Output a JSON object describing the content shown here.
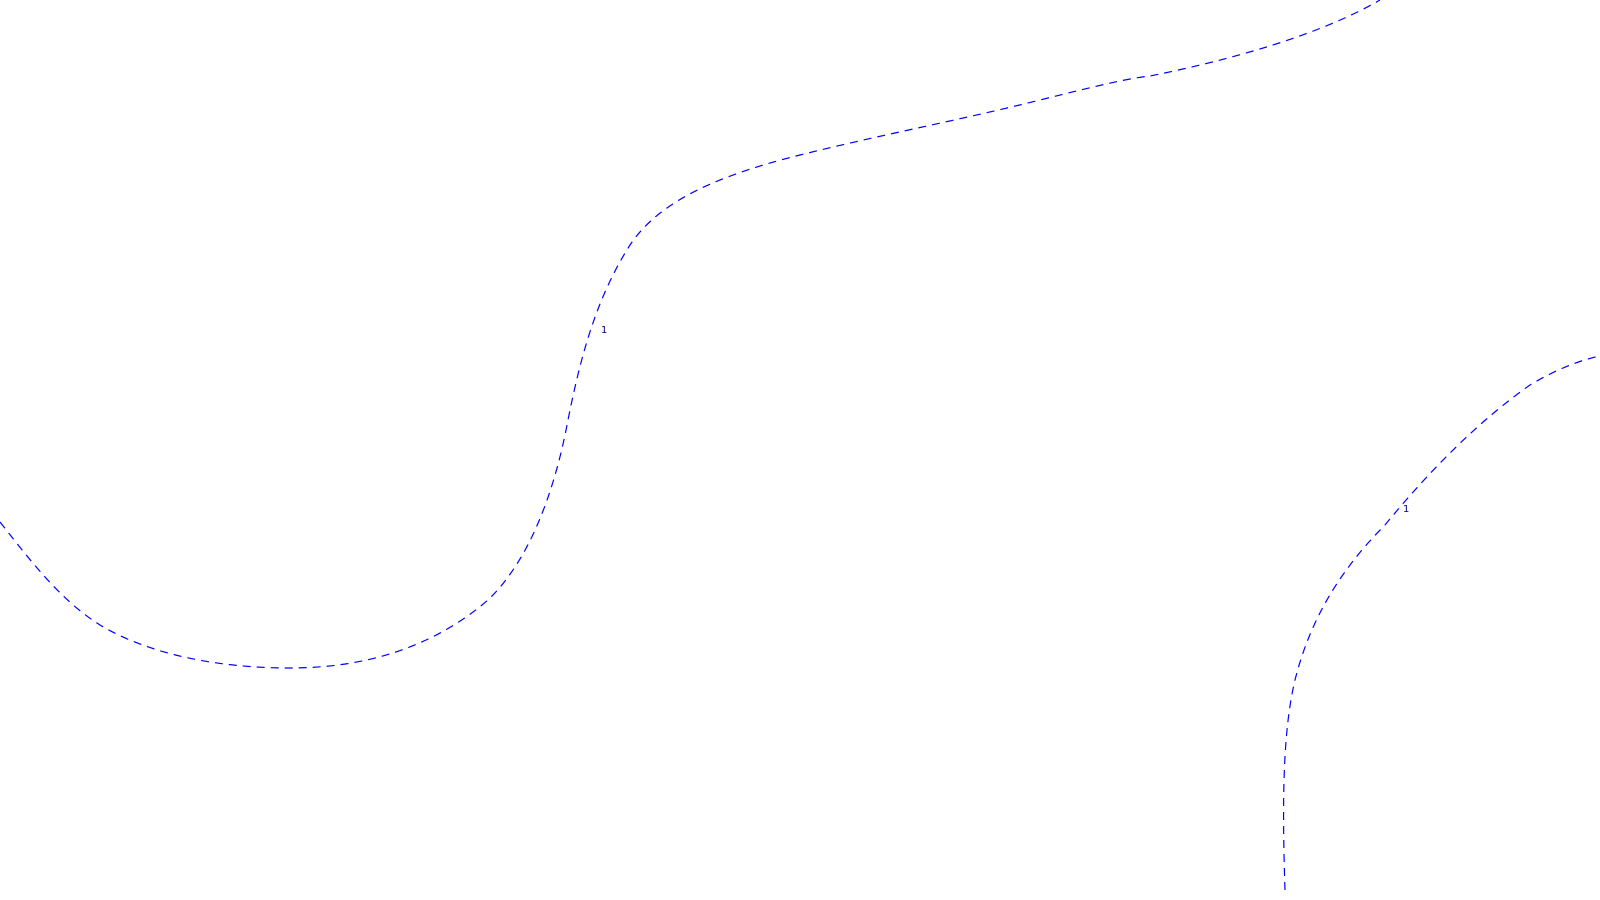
{
  "map": {
    "contour_color": "#0000ff",
    "label_color": "#000080",
    "contours": [
      {
        "id": "a",
        "label": "1"
      },
      {
        "id": "b",
        "label": "1"
      }
    ]
  }
}
